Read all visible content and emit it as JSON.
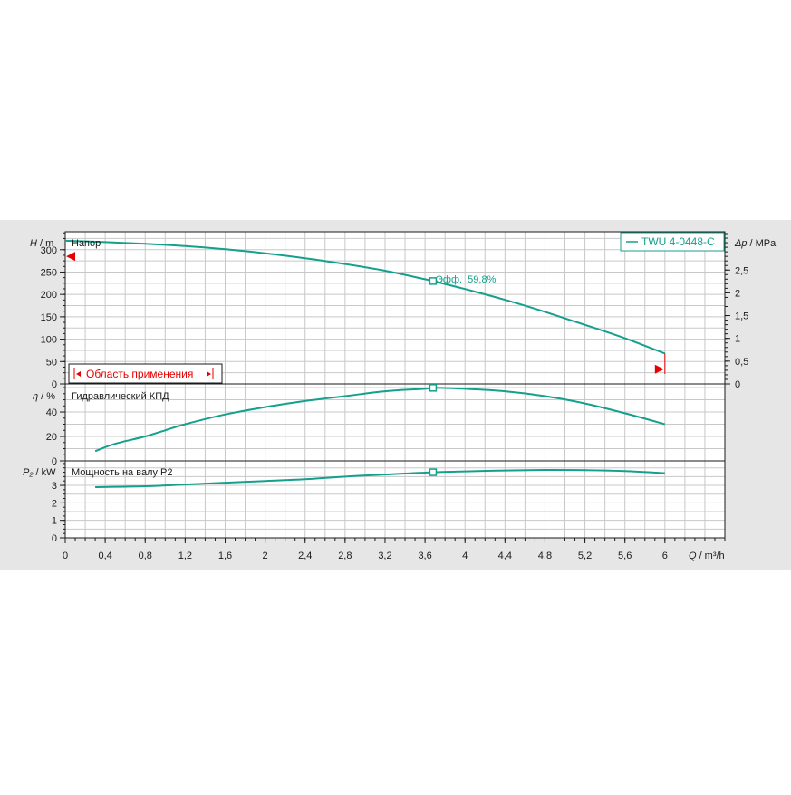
{
  "colors": {
    "panel_bg": "#e6e6e6",
    "plot_bg": "#ffffff",
    "grid": "#c8c8c8",
    "curve": "#14a08c",
    "marker_red": "#e60000",
    "text": "#1a1a1a"
  },
  "legend": {
    "label": "TWU 4-0448-C",
    "placement": "top-right"
  },
  "application_range_label": "Область применения",
  "efficiency_label": "Эфф.  59,8%",
  "chart_data": [
    {
      "type": "line",
      "title": "Напор",
      "ylabel": "H / m",
      "ylabel_sym": "H",
      "ylabel_unit": "/ m",
      "right_axis": {
        "label": "Δp / MPa",
        "label_sym": "Δp",
        "label_unit": "/ MPa",
        "ticks": [
          "0",
          "0,5",
          "1",
          "1,5",
          "2",
          "2,5"
        ],
        "tick_values": [
          0,
          0.5,
          1,
          1.5,
          2,
          2.5
        ],
        "range": [
          0,
          3.34
        ]
      },
      "ylim": [
        0,
        340
      ],
      "yticks": [
        "0",
        "50",
        "100",
        "150",
        "200",
        "250",
        "300"
      ],
      "ytick_values": [
        0,
        50,
        100,
        150,
        200,
        250,
        300
      ],
      "series": [
        {
          "x": [
            0,
            0.4,
            0.8,
            1.2,
            1.6,
            2.0,
            2.4,
            2.8,
            3.2,
            3.6,
            3.68,
            4.0,
            4.4,
            4.8,
            5.2,
            5.6,
            6.0
          ],
          "y": [
            320,
            317,
            313,
            308,
            301,
            292,
            281,
            268,
            253,
            234,
            230,
            212,
            188,
            161,
            132,
            102,
            68
          ]
        }
      ],
      "duty_point": {
        "x": 3.68,
        "y": 230
      },
      "operating_range": {
        "x_min": 0,
        "x_max": 6.0,
        "y_left_marker": 285,
        "y_right_marker": 33
      }
    },
    {
      "type": "line",
      "title": "Гидравлический КПД",
      "ylabel": "η / %",
      "ylabel_sym": "η",
      "ylabel_unit": "/ %",
      "ylim": [
        0,
        63
      ],
      "yticks": [
        "0",
        "20",
        "40"
      ],
      "ytick_values": [
        0,
        20,
        40
      ],
      "series": [
        {
          "x": [
            0.3,
            0.5,
            0.8,
            1.0,
            1.2,
            1.6,
            2.0,
            2.4,
            2.8,
            3.2,
            3.6,
            3.68,
            4.0,
            4.4,
            4.8,
            5.2,
            5.6,
            6.0
          ],
          "y": [
            8,
            14,
            20,
            25,
            30,
            38,
            44,
            49,
            53,
            57,
            59,
            59.8,
            59,
            57,
            53,
            47,
            39,
            30
          ]
        }
      ],
      "duty_point": {
        "x": 3.68,
        "y": 59.8
      }
    },
    {
      "type": "line",
      "title": "Мощность на валу P2",
      "ylabel": "P₂ / kW",
      "ylabel_sym": "P₂",
      "ylabel_unit": "/ kW",
      "ylim": [
        0,
        4.4
      ],
      "yticks": [
        "0",
        "1",
        "2",
        "3"
      ],
      "ytick_values": [
        0,
        1,
        2,
        3
      ],
      "xlabel": "Q / m³/h",
      "xlabel_sym": "Q",
      "xlabel_unit": "/ m³/h",
      "xlim": [
        0,
        6.6
      ],
      "xticks": [
        "0",
        "0,4",
        "0,8",
        "1,2",
        "1,6",
        "2",
        "2,4",
        "2,8",
        "3,2",
        "3,6",
        "4",
        "4,4",
        "4,8",
        "5,2",
        "5,6",
        "6"
      ],
      "xtick_values": [
        0,
        0.4,
        0.8,
        1.2,
        1.6,
        2.0,
        2.4,
        2.8,
        3.2,
        3.6,
        4.0,
        4.4,
        4.8,
        5.2,
        5.6,
        6.0
      ],
      "series": [
        {
          "x": [
            0.3,
            0.8,
            1.2,
            1.6,
            2.0,
            2.4,
            2.8,
            3.2,
            3.68,
            4.0,
            4.4,
            4.8,
            5.2,
            5.6,
            6.0
          ],
          "y": [
            2.9,
            2.95,
            3.05,
            3.15,
            3.25,
            3.35,
            3.5,
            3.62,
            3.75,
            3.8,
            3.85,
            3.88,
            3.87,
            3.82,
            3.7
          ]
        }
      ],
      "duty_point": {
        "x": 3.68,
        "y": 3.75
      }
    }
  ]
}
